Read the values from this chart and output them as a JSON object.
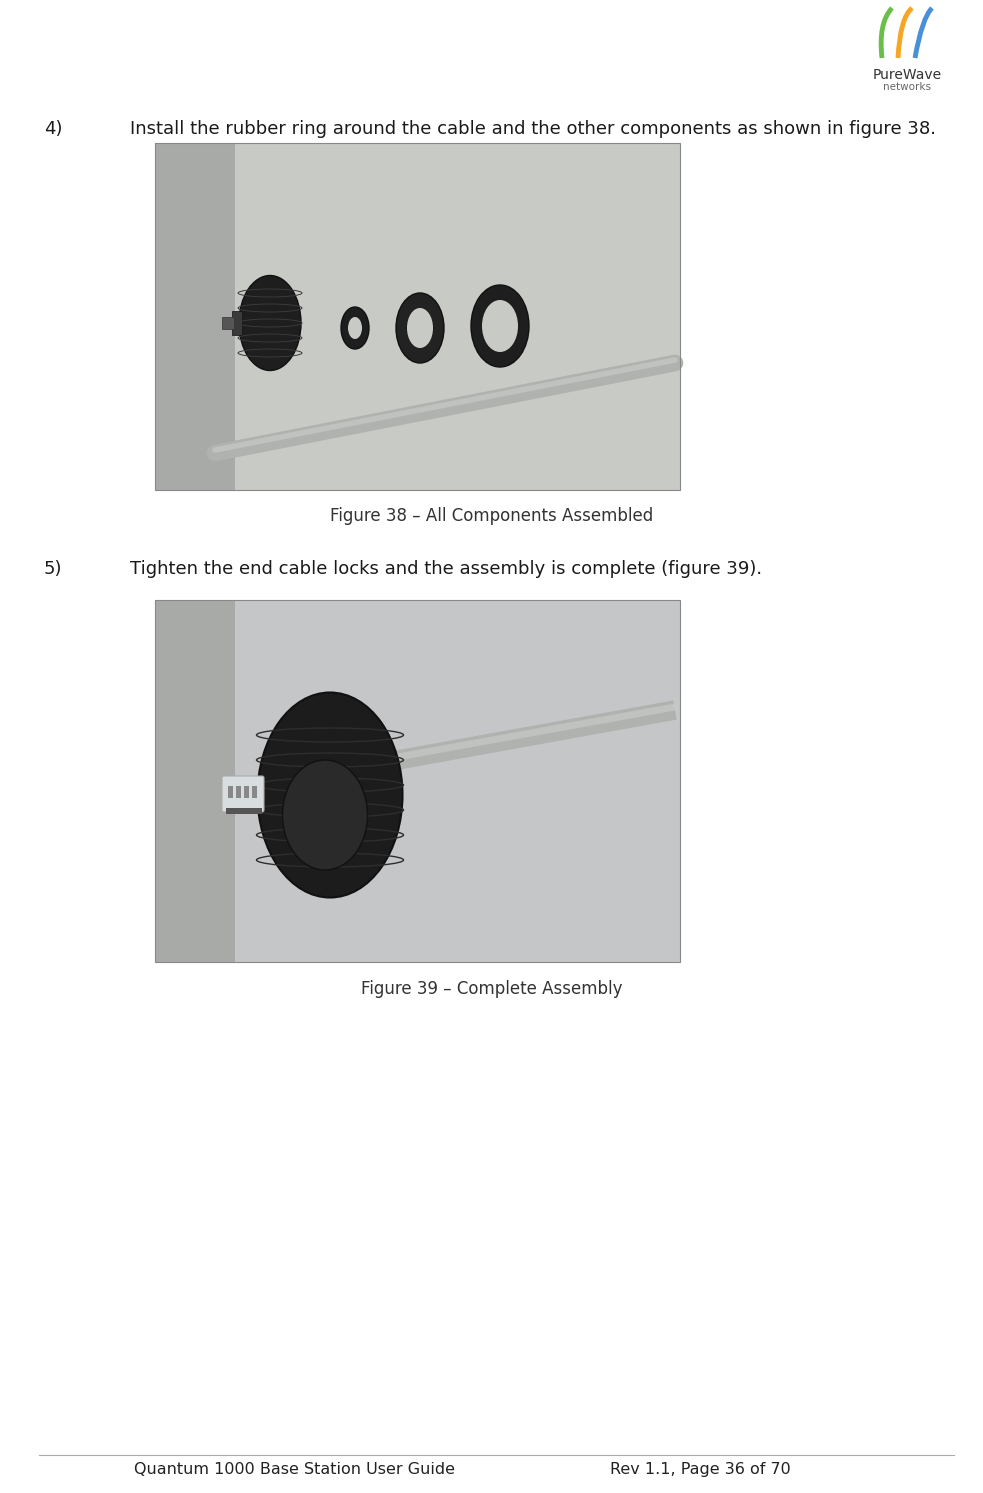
{
  "page_width": 9.83,
  "page_height": 14.93,
  "bg_color": "#ffffff",
  "logo_text_line1": "PureWave",
  "logo_text_line2": "networks",
  "step4_number": "4)",
  "step4_text": "Install the rubber ring around the cable and the other components as shown in figure 38.",
  "fig38_caption": "Figure 38 – All Components Assembled",
  "step5_number": "5)",
  "step5_text": "Tighten the end cable locks and the assembly is complete (figure 39).",
  "fig39_caption": "Figure 39 – Complete Assembly",
  "footer_left": "Quantum 1000 Base Station User Guide",
  "footer_right": "Rev 1.1, Page 36 of 70",
  "text_color": "#1a1a1a",
  "caption_color": "#333333",
  "footer_color": "#222222",
  "img1_bg_left": "#b8bab8",
  "img1_bg_right": "#c8cac8",
  "img2_bg": "#c0c2c4",
  "logo_green": "#6abf4b",
  "logo_orange": "#f5a623",
  "logo_blue": "#4a90d9"
}
